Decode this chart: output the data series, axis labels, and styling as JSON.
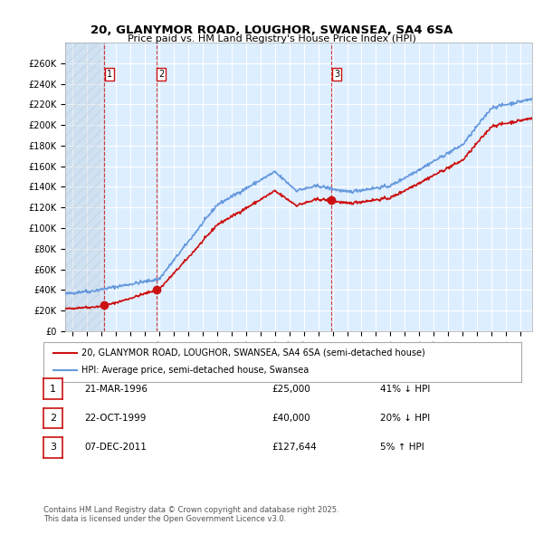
{
  "title_line1": "20, GLANYMOR ROAD, LOUGHOR, SWANSEA, SA4 6SA",
  "title_line2": "Price paid vs. HM Land Registry's House Price Index (HPI)",
  "background_color": "#ffffff",
  "plot_bg_color": "#ddeeff",
  "grid_color": "#ffffff",
  "hpi_color": "#6699dd",
  "price_color": "#cc1111",
  "transactions": [
    {
      "num": 1,
      "date_label": "21-MAR-1996",
      "date_num": 1996.22,
      "price": 25000,
      "pct": "41%",
      "dir": "↓"
    },
    {
      "num": 2,
      "date_label": "22-OCT-1999",
      "date_num": 1999.81,
      "price": 40000,
      "pct": "20%",
      "dir": "↓"
    },
    {
      "num": 3,
      "date_label": "07-DEC-2011",
      "date_num": 2011.93,
      "price": 127644,
      "pct": "5%",
      "dir": "↑"
    }
  ],
  "legend_line1": "20, GLANYMOR ROAD, LOUGHOR, SWANSEA, SA4 6SA (semi-detached house)",
  "legend_line2": "HPI: Average price, semi-detached house, Swansea",
  "footer": "Contains HM Land Registry data © Crown copyright and database right 2025.\nThis data is licensed under the Open Government Licence v3.0.",
  "table_rows": [
    [
      "1",
      "21-MAR-1996",
      "£25,000",
      "41% ↓ HPI"
    ],
    [
      "2",
      "22-OCT-1999",
      "£40,000",
      "20% ↓ HPI"
    ],
    [
      "3",
      "07-DEC-2011",
      "£127,644",
      "5% ↑ HPI"
    ]
  ],
  "ylim": [
    0,
    280000
  ],
  "yticks": [
    0,
    20000,
    40000,
    60000,
    80000,
    100000,
    120000,
    140000,
    160000,
    180000,
    200000,
    220000,
    240000,
    260000
  ],
  "xlim_start": 1993.5,
  "xlim_end": 2025.8
}
